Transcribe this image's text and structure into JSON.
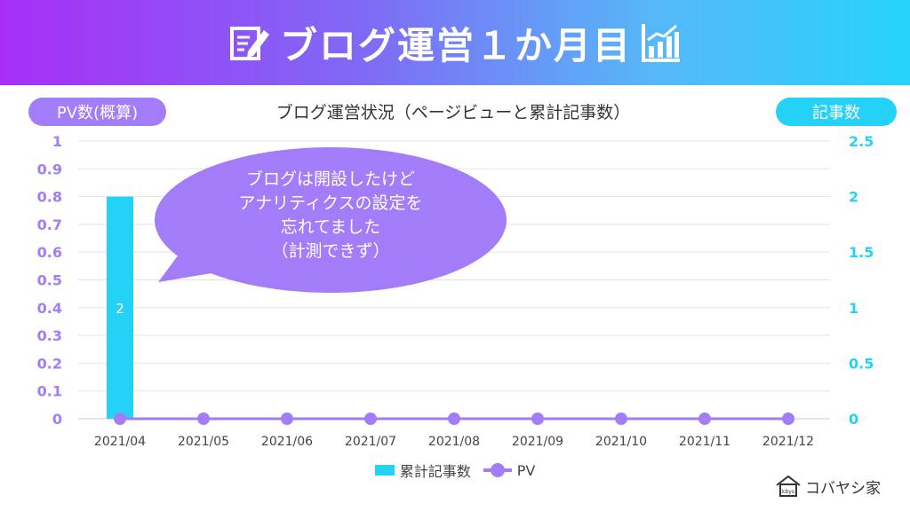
{
  "header": {
    "title": "ブログ運営１か月目"
  },
  "axes_pills": {
    "left": "PV数(概算)",
    "right": "記事数"
  },
  "colors": {
    "bar": "#24d2f8",
    "line": "#a37cfa",
    "left_axis_text": "#a37cfa",
    "right_axis_text": "#24d2f8",
    "callout": "#a37cfa"
  },
  "callout": {
    "lines": [
      "ブログは開設したけど",
      "アナリティクスの設定を",
      "忘れてました",
      "（計測できず）"
    ]
  },
  "logo": {
    "text": "コバヤシ家",
    "icon_text": "kbys"
  },
  "chart_data": {
    "type": "bar",
    "title": "ブログ運営状況（ページビューと累計記事数）",
    "categories": [
      "2021/04",
      "2021/05",
      "2021/06",
      "2021/07",
      "2021/08",
      "2021/09",
      "2021/10",
      "2021/11",
      "2021/12"
    ],
    "series": [
      {
        "name": "累計記事数",
        "type": "bar",
        "axis": "right",
        "values": [
          2,
          null,
          null,
          null,
          null,
          null,
          null,
          null,
          null
        ],
        "data_labels": [
          "2",
          "",
          "",
          "",
          "",
          "",
          "",
          "",
          ""
        ]
      },
      {
        "name": "PV",
        "type": "line",
        "axis": "left",
        "values": [
          0,
          0,
          0,
          0,
          0,
          0,
          0,
          0,
          0
        ]
      }
    ],
    "y_left": {
      "min": 0,
      "max": 1,
      "ticks": [
        0,
        0.1,
        0.2,
        0.3,
        0.4,
        0.5,
        0.6,
        0.7,
        0.8,
        0.9,
        1
      ],
      "tick_labels": [
        "0",
        "0.1",
        "0.2",
        "0.3",
        "0.4",
        "0.5",
        "0.6",
        "0.7",
        "0.8",
        "0.9",
        "1"
      ]
    },
    "y_right": {
      "min": 0,
      "max": 2.5,
      "ticks": [
        0,
        0.5,
        1,
        1.5,
        2,
        2.5
      ],
      "tick_labels": [
        "0",
        "0.5",
        "1",
        "1.5",
        "2",
        "2.5"
      ]
    },
    "grid": true,
    "legend_position": "bottom"
  }
}
